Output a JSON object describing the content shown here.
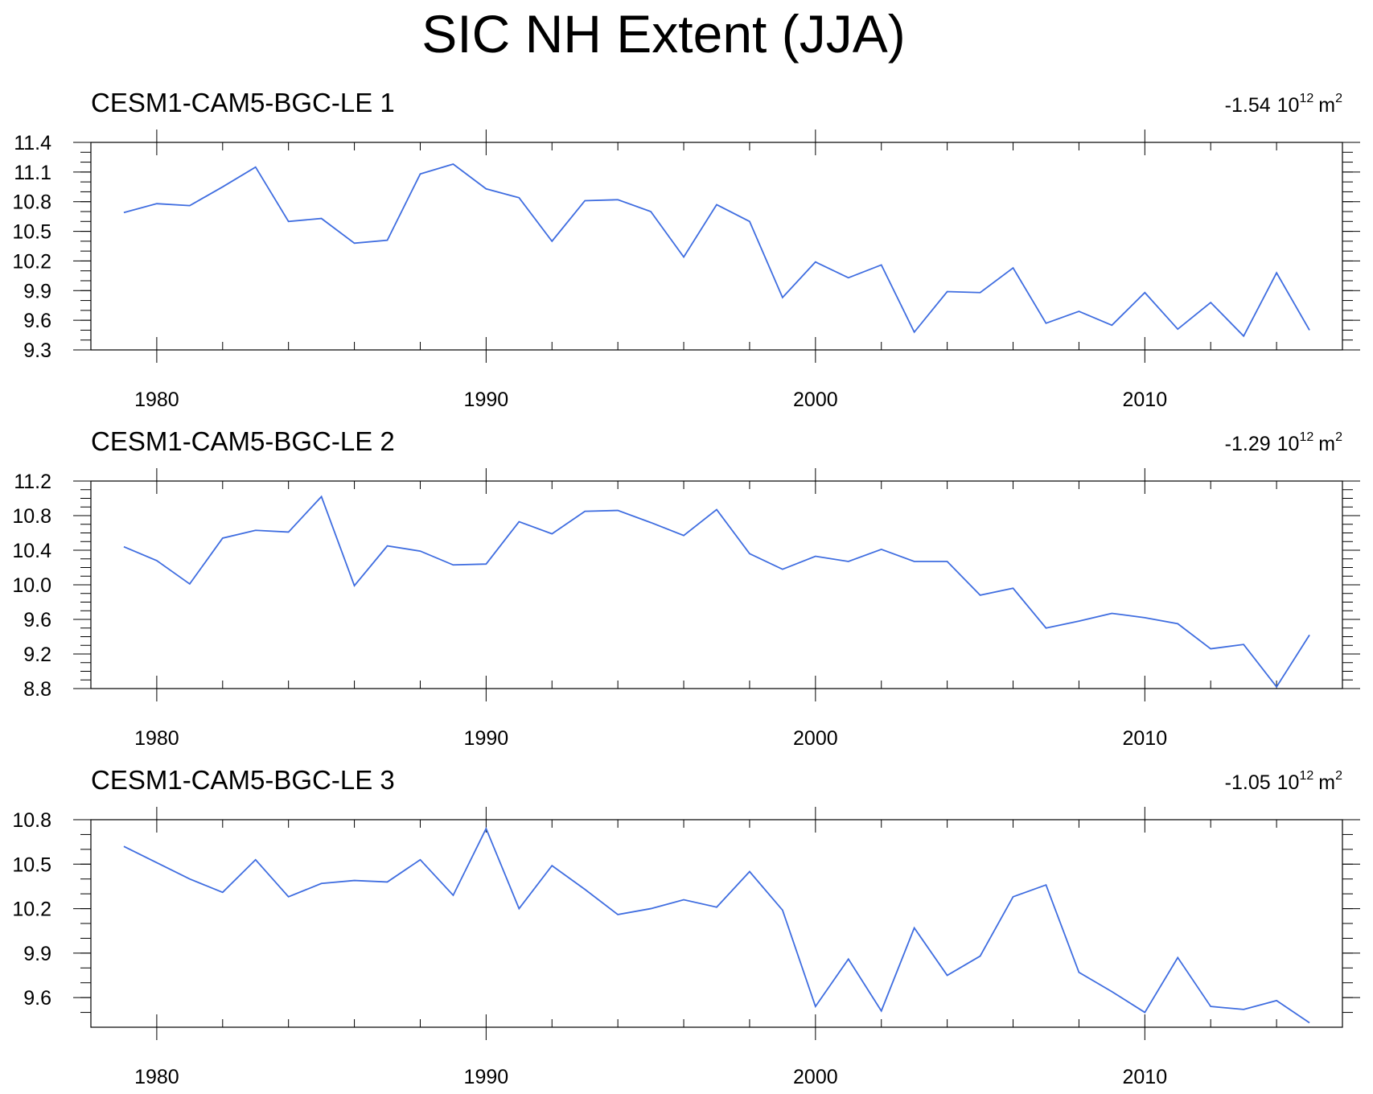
{
  "title": "SIC NH Extent (JJA)",
  "colors": {
    "line": "#3f6de0",
    "axis": "#000000",
    "background": "#ffffff"
  },
  "x_ticks": [
    1980,
    1990,
    2000,
    2010
  ],
  "trend_unit": {
    "base": "10",
    "exponent": "12",
    "unit": "m",
    "unit_exponent": "2"
  },
  "chart_data": [
    {
      "type": "line",
      "subtitle": "CESM1-CAM5-BGC-LE 1",
      "trend_value": "-1.54",
      "xlim": [
        1978,
        2016
      ],
      "ylim": [
        9.3,
        11.4
      ],
      "yticks": [
        "11.4",
        "11.1",
        "10.8",
        "10.5",
        "10.2",
        "9.9",
        "9.6",
        "9.3"
      ],
      "y_minor_step": 0.1,
      "x": [
        1979,
        1980,
        1981,
        1982,
        1983,
        1984,
        1985,
        1986,
        1987,
        1988,
        1989,
        1990,
        1991,
        1992,
        1993,
        1994,
        1995,
        1996,
        1997,
        1998,
        1999,
        2000,
        2001,
        2002,
        2003,
        2004,
        2005,
        2006,
        2007,
        2008,
        2009,
        2010,
        2011,
        2012,
        2013,
        2014,
        2015
      ],
      "values": [
        10.69,
        10.78,
        10.76,
        10.95,
        11.15,
        10.6,
        10.63,
        10.38,
        10.41,
        11.08,
        11.18,
        10.93,
        10.84,
        10.4,
        10.81,
        10.82,
        10.7,
        10.24,
        10.77,
        10.6,
        9.83,
        10.19,
        10.03,
        10.16,
        9.48,
        9.89,
        9.88,
        10.13,
        9.57,
        9.69,
        9.55,
        9.88,
        9.51,
        9.78,
        9.44,
        10.08,
        9.5
      ]
    },
    {
      "type": "line",
      "subtitle": "CESM1-CAM5-BGC-LE 2",
      "trend_value": "-1.29",
      "xlim": [
        1978,
        2016
      ],
      "ylim": [
        8.8,
        11.2
      ],
      "yticks": [
        "11.2",
        "10.8",
        "10.4",
        "10.0",
        "9.6",
        "9.2",
        "8.8"
      ],
      "y_minor_step": 0.1,
      "x": [
        1979,
        1980,
        1981,
        1982,
        1983,
        1984,
        1985,
        1986,
        1987,
        1988,
        1989,
        1990,
        1991,
        1992,
        1993,
        1994,
        1995,
        1996,
        1997,
        1998,
        1999,
        2000,
        2001,
        2002,
        2003,
        2004,
        2005,
        2006,
        2007,
        2008,
        2009,
        2010,
        2011,
        2012,
        2013,
        2014,
        2015
      ],
      "values": [
        10.44,
        10.28,
        10.01,
        10.54,
        10.63,
        10.61,
        11.02,
        9.99,
        10.45,
        10.39,
        10.23,
        10.24,
        10.73,
        10.59,
        10.85,
        10.86,
        10.72,
        10.57,
        10.87,
        10.36,
        10.18,
        10.33,
        10.27,
        10.41,
        10.27,
        10.27,
        9.88,
        9.96,
        9.5,
        9.58,
        9.67,
        9.62,
        9.55,
        9.26,
        9.31,
        8.82,
        9.42
      ]
    },
    {
      "type": "line",
      "subtitle": "CESM1-CAM5-BGC-LE 3",
      "trend_value": "-1.05",
      "xlim": [
        1978,
        2016
      ],
      "ylim": [
        9.4,
        10.8
      ],
      "yticks": [
        "10.8",
        "10.5",
        "10.2",
        "9.9",
        "9.6"
      ],
      "y_minor_step": 0.1,
      "x": [
        1979,
        1980,
        1981,
        1982,
        1983,
        1984,
        1985,
        1986,
        1987,
        1988,
        1989,
        1990,
        1991,
        1992,
        1993,
        1994,
        1995,
        1996,
        1997,
        1998,
        1999,
        2000,
        2001,
        2002,
        2003,
        2004,
        2005,
        2006,
        2007,
        2008,
        2009,
        2010,
        2011,
        2012,
        2013,
        2014,
        2015
      ],
      "values": [
        10.62,
        10.51,
        10.4,
        10.31,
        10.53,
        10.28,
        10.37,
        10.39,
        10.38,
        10.53,
        10.29,
        10.74,
        10.2,
        10.49,
        10.33,
        10.16,
        10.2,
        10.26,
        10.21,
        10.45,
        10.19,
        9.54,
        9.86,
        9.51,
        10.07,
        9.75,
        9.88,
        10.28,
        10.36,
        9.77,
        9.64,
        9.5,
        9.87,
        9.54,
        9.52,
        9.58,
        9.43
      ]
    }
  ]
}
